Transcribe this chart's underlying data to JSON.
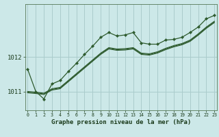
{
  "title": "Graphe pression niveau de la mer (hPa)",
  "background_color": "#cce8e8",
  "grid_color": "#aacccc",
  "line_color": "#2d5a2d",
  "x_ticks": [
    0,
    1,
    2,
    3,
    4,
    5,
    6,
    7,
    8,
    9,
    10,
    11,
    12,
    13,
    14,
    15,
    16,
    17,
    18,
    19,
    20,
    21,
    22,
    23
  ],
  "y_ticks": [
    1011,
    1012
  ],
  "ylim": [
    1010.45,
    1013.55
  ],
  "xlim": [
    -0.3,
    23.3
  ],
  "series1": [
    1011.65,
    1011.0,
    1010.78,
    1011.22,
    1011.32,
    1011.58,
    1011.82,
    1012.08,
    1012.32,
    1012.58,
    1012.72,
    1012.62,
    1012.65,
    1012.72,
    1012.42,
    1012.38,
    1012.38,
    1012.5,
    1012.52,
    1012.58,
    1012.72,
    1012.88,
    1013.12,
    1013.22
  ],
  "series2": [
    1011.0,
    1010.98,
    1010.95,
    1011.08,
    1011.12,
    1011.32,
    1011.52,
    1011.72,
    1011.92,
    1012.12,
    1012.28,
    1012.24,
    1012.25,
    1012.28,
    1012.12,
    1012.1,
    1012.16,
    1012.26,
    1012.34,
    1012.4,
    1012.5,
    1012.68,
    1012.88,
    1013.05
  ],
  "series3": [
    1010.98,
    1010.96,
    1010.93,
    1011.06,
    1011.1,
    1011.3,
    1011.5,
    1011.7,
    1011.9,
    1012.1,
    1012.26,
    1012.22,
    1012.23,
    1012.26,
    1012.1,
    1012.08,
    1012.14,
    1012.24,
    1012.32,
    1012.38,
    1012.48,
    1012.66,
    1012.86,
    1013.03
  ],
  "series4": [
    1010.96,
    1010.94,
    1010.91,
    1011.04,
    1011.08,
    1011.28,
    1011.48,
    1011.68,
    1011.88,
    1012.08,
    1012.24,
    1012.2,
    1012.21,
    1012.24,
    1012.08,
    1012.06,
    1012.12,
    1012.22,
    1012.3,
    1012.36,
    1012.46,
    1012.64,
    1012.84,
    1013.01
  ]
}
